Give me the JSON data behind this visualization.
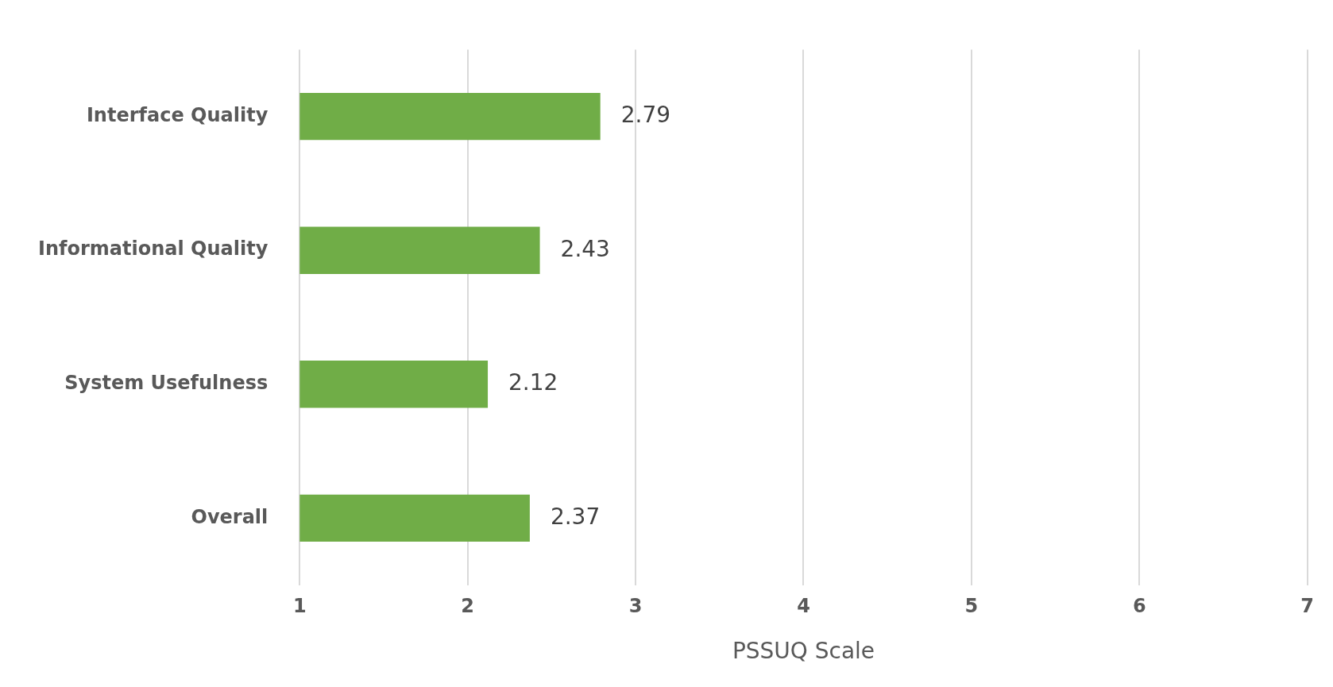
{
  "chart_data": {
    "type": "bar",
    "orientation": "horizontal",
    "xlabel": "PSSUQ Scale",
    "categories": [
      "Interface Quality",
      "Informational Quality",
      "System Usefulness",
      "Overall"
    ],
    "values": [
      2.79,
      2.43,
      2.12,
      2.37
    ],
    "color": "#70ad47",
    "xlim": [
      1,
      7
    ],
    "xticks": [
      1,
      2,
      3,
      4,
      5,
      6,
      7
    ],
    "grid": "x",
    "data_labels": true,
    "legend": false
  }
}
